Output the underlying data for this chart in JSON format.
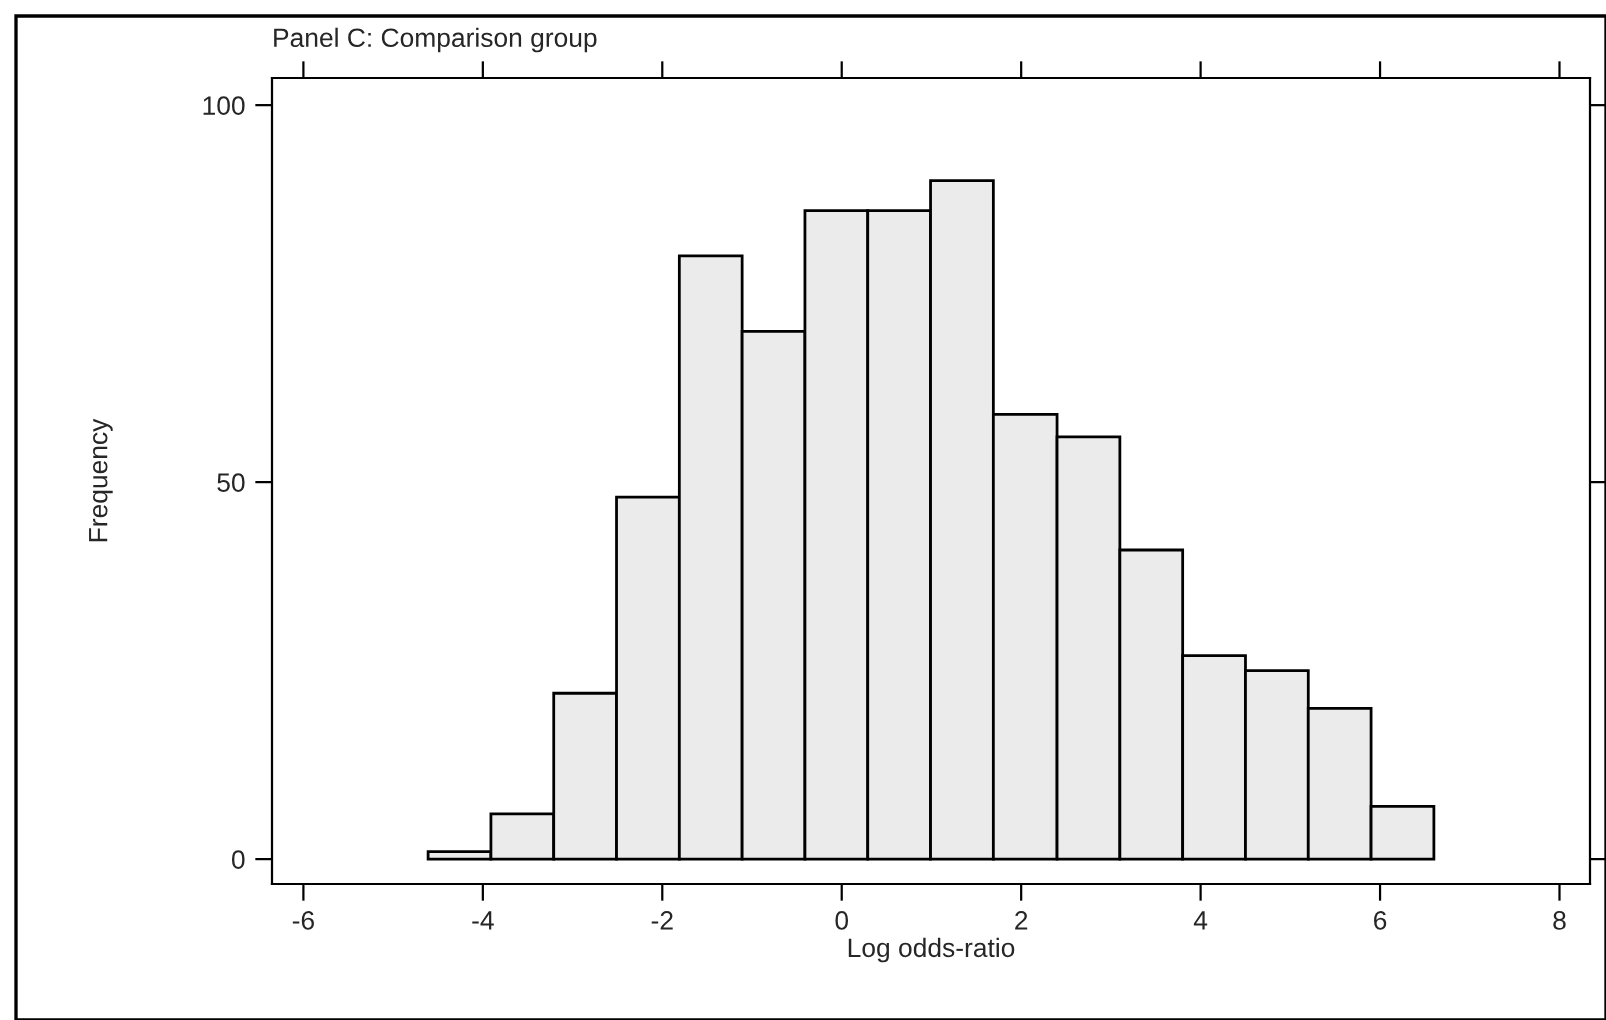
{
  "chart_data": {
    "type": "histogram",
    "title": "Panel C: Comparison group",
    "xlabel": "Log odds-ratio",
    "ylabel": "Frequency",
    "bins": [
      -4.61,
      -3.91,
      -3.21,
      -2.51,
      -1.81,
      -1.11,
      -0.41,
      0.29,
      0.99,
      1.69,
      2.4,
      3.1,
      3.8,
      4.5,
      5.2,
      5.9,
      6.6
    ],
    "values": [
      1,
      6,
      22,
      48,
      80,
      70,
      86,
      86,
      90,
      59,
      56,
      41,
      27,
      25,
      20,
      7
    ],
    "color": "#ebebeb",
    "xlim": [
      -6.35,
      8.34
    ],
    "ylim": [
      -3.3,
      103.6
    ],
    "xticks": [
      -6,
      -4,
      -2,
      0,
      2,
      4,
      6,
      8
    ],
    "yticks": [
      0,
      50,
      100
    ],
    "grid": false
  }
}
